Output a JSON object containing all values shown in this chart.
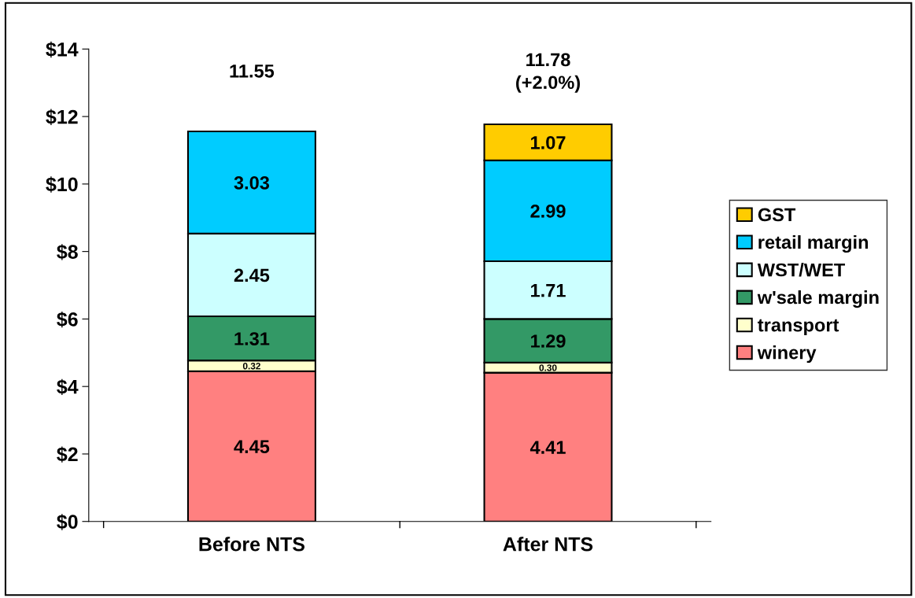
{
  "chart_data": {
    "type": "bar",
    "stacked": true,
    "categories": [
      "Before NTS",
      "After NTS"
    ],
    "series": [
      {
        "name": "winery",
        "color": "#ff8080",
        "values": [
          4.45,
          4.41
        ],
        "value_labels": [
          "4.45",
          "4.41"
        ]
      },
      {
        "name": "transport",
        "color": "#ffffcc",
        "values": [
          0.32,
          0.3
        ],
        "value_labels": [
          "0.32",
          "0.30"
        ]
      },
      {
        "name": "w'sale margin",
        "color": "#339966",
        "values": [
          1.31,
          1.29
        ],
        "value_labels": [
          "1.31",
          "1.29"
        ]
      },
      {
        "name": "WST/WET",
        "color": "#ccffff",
        "values": [
          2.45,
          1.71
        ],
        "value_labels": [
          "2.45",
          "1.71"
        ]
      },
      {
        "name": "retail margin",
        "color": "#00ccff",
        "values": [
          3.03,
          2.99
        ],
        "value_labels": [
          "3.03",
          "2.99"
        ]
      },
      {
        "name": "GST",
        "color": "#ffcc00",
        "values": [
          null,
          1.07
        ],
        "value_labels": [
          null,
          "1.07"
        ]
      }
    ],
    "totals": [
      "11.55",
      "11.78\n(+2.0%)"
    ],
    "ylim": [
      0,
      14
    ],
    "yticks": [
      {
        "value": 0,
        "label": "$0"
      },
      {
        "value": 2,
        "label": "$2"
      },
      {
        "value": 4,
        "label": "$4"
      },
      {
        "value": 6,
        "label": "$6"
      },
      {
        "value": 8,
        "label": "$8"
      },
      {
        "value": 10,
        "label": "$10"
      },
      {
        "value": 12,
        "label": "$12"
      },
      {
        "value": 14,
        "label": "$14"
      }
    ],
    "grid": false,
    "legend": "right"
  }
}
